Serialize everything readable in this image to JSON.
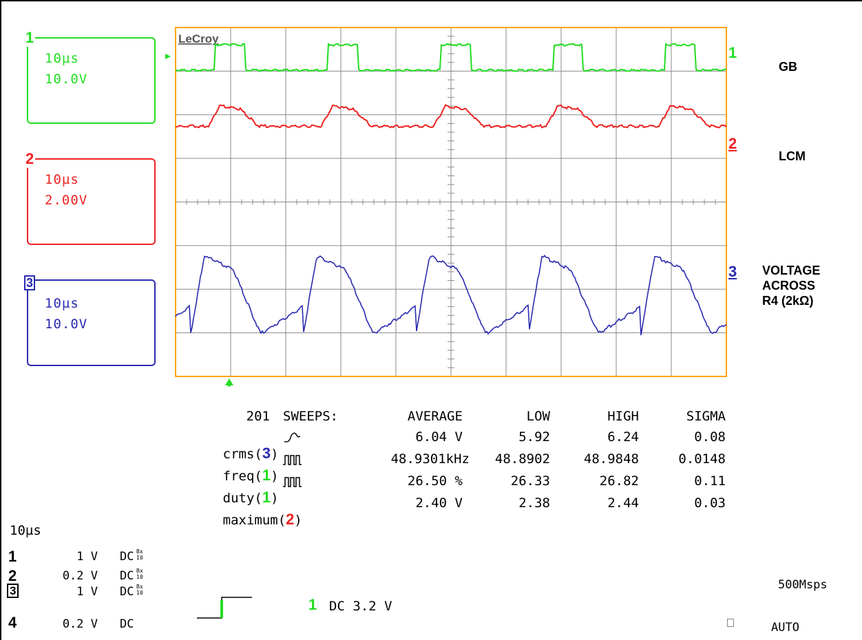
{
  "brand": "LeCroy",
  "colors": {
    "ch1": "#22dd22",
    "ch2": "#ee2222",
    "ch3": "#2a2ab0",
    "grid": "#888888",
    "frame": "#ffa500"
  },
  "channels": [
    {
      "num": "1",
      "timebase": "10µs",
      "volts": "10.0V",
      "label": "GB"
    },
    {
      "num": "2",
      "timebase": "10µs",
      "volts": "2.00V",
      "label": "LCM"
    },
    {
      "num": "3",
      "timebase": "10µs",
      "volts": "10.0V",
      "label_lines": [
        "VOLTAGE",
        "ACROSS",
        "R4 (2kΩ)"
      ]
    }
  ],
  "measurements": {
    "sweeps_count": "201",
    "sweeps_label": "SWEEPS:",
    "columns": [
      "AVERAGE",
      "LOW",
      "HIGH",
      "SIGMA"
    ],
    "rows": [
      {
        "name": "crms(",
        "ch": "3",
        "close": ")",
        "icon": "sine-icon",
        "average": "6.04 V",
        "low": "5.92",
        "high": "6.24",
        "sigma": "0.08"
      },
      {
        "name": "freq(",
        "ch": "1",
        "close": ")",
        "icon": "pulse-icon",
        "average": "48.9301kHz",
        "low": "48.8902",
        "high": "48.9848",
        "sigma": "0.0148"
      },
      {
        "name": "duty(",
        "ch": "1",
        "close": ")",
        "icon": "pulse-icon",
        "average": "26.50 %",
        "low": "26.33",
        "high": "26.82",
        "sigma": "0.11"
      },
      {
        "name": "maximum(",
        "ch": "2",
        "close": ")",
        "icon": "pulse-icon",
        "average": "2.40 V",
        "low": "2.38",
        "high": "2.44",
        "sigma": "0.03"
      }
    ]
  },
  "timebase": "10µs",
  "inputs": [
    {
      "num": "1",
      "scale": "1 V",
      "coupling": "DC",
      "suffix": "Bx\n10"
    },
    {
      "num": "2",
      "scale": "0.2 V",
      "coupling": "DC",
      "suffix": "Bx\n10"
    },
    {
      "num": "3",
      "scale": "1 V",
      "coupling": "DC",
      "suffix": "Bx\n10"
    },
    {
      "num": "4",
      "scale": "0.2 V",
      "coupling": "DC",
      "suffix": ""
    }
  ],
  "trigger": {
    "source": "1",
    "text": "DC 3.2 V"
  },
  "sample_rate": "500Msps",
  "trigger_mode": "AUTO",
  "chart_data": {
    "type": "line",
    "title": "",
    "xlabel": "",
    "ylabel": "",
    "x_unit_per_div": "10µs",
    "divisions": {
      "x": 10,
      "y": 8
    },
    "series": [
      {
        "name": "GB",
        "channel": "1",
        "waveform": "pulse",
        "frequency_khz": 48.9301,
        "duty_percent": 26.5,
        "volts_per_div": "10.0V"
      },
      {
        "name": "LCM",
        "channel": "2",
        "waveform": "rounded-pulse",
        "frequency_khz": 48.9301,
        "maximum_v": 2.4,
        "volts_per_div": "2.00V"
      },
      {
        "name": "VOLTAGE ACROSS R4 (2kΩ)",
        "channel": "3",
        "waveform": "triangular-ac",
        "crms_v": 6.04,
        "volts_per_div": "10.0V"
      }
    ]
  }
}
